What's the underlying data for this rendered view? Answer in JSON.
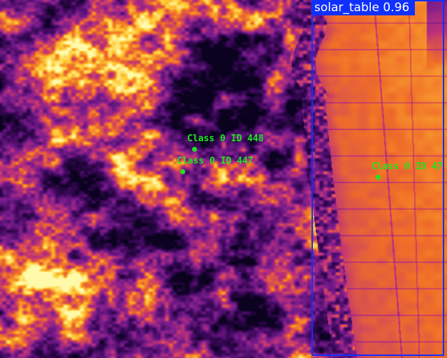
{
  "detection": {
    "label": "solar_table 0.96",
    "box_color": "#1030ff"
  },
  "tracks": [
    {
      "label": "Class 0 ID 448"
    },
    {
      "label": "Class 0 ID 447"
    },
    {
      "label": "Class 0 ID 47"
    }
  ],
  "palette": {
    "background_dark": "#1a0430",
    "vegetation_mid": "#7a1f9a",
    "vegetation_hot": "#ffd84a",
    "panel_hot": "#ff7a10",
    "panel_cool": "#d0287a",
    "track_color": "#1ee61e"
  }
}
